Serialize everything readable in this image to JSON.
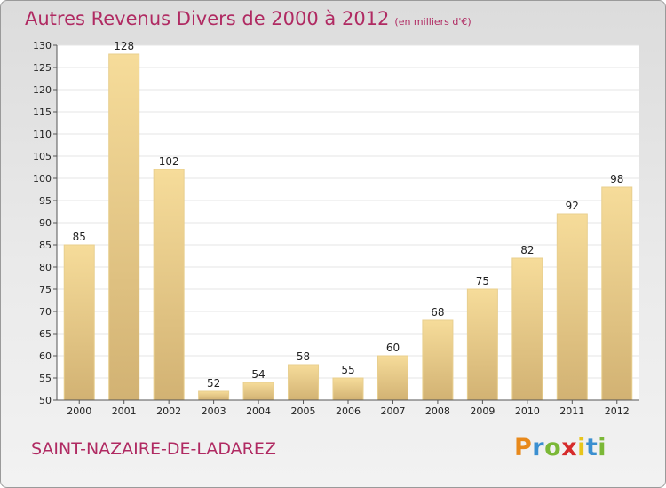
{
  "title": "Autres Revenus Divers de 2000 à 2012",
  "subtitle": "(en milliers d'€)",
  "commune": "SAINT-NAZAIRE-DE-LADAREZ",
  "logo": {
    "letters": [
      "P",
      "r",
      "o",
      "x",
      "i",
      "t",
      "i"
    ],
    "colors": [
      "#e8891b",
      "#3b8fd0",
      "#7bb837",
      "#d62b2b",
      "#e8c51b",
      "#3b8fd0",
      "#7bb837"
    ]
  },
  "colors": {
    "title": "#b02a62",
    "bar_light": "#f6dc9a",
    "bar_dark": "#d2b273",
    "plot_bg": "#ffffff"
  },
  "chart_data": {
    "type": "bar",
    "title": "Autres Revenus Divers de 2000 à 2012",
    "subtitle": "(en milliers d'€)",
    "categories": [
      "2000",
      "2001",
      "2002",
      "2003",
      "2004",
      "2005",
      "2006",
      "2007",
      "2008",
      "2009",
      "2010",
      "2011",
      "2012"
    ],
    "values": [
      85,
      128,
      102,
      52,
      54,
      58,
      55,
      60,
      68,
      75,
      82,
      92,
      98
    ],
    "ylim": [
      50,
      130
    ],
    "yticks": [
      50,
      55,
      60,
      65,
      70,
      75,
      80,
      85,
      90,
      95,
      100,
      105,
      110,
      115,
      120,
      125,
      130
    ],
    "grid": true,
    "xlabel": "",
    "ylabel": ""
  }
}
